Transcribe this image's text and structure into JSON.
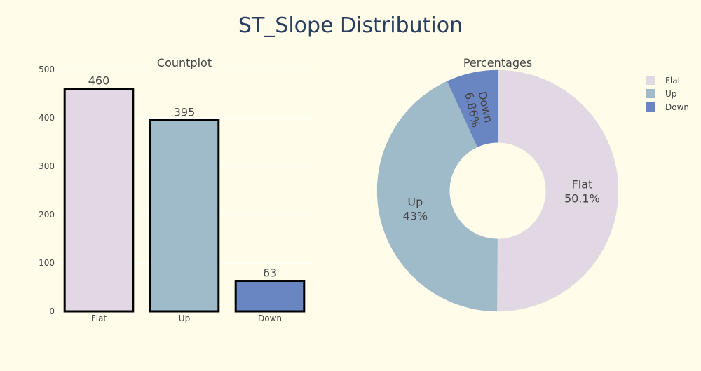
{
  "title": "ST_Slope Distribution",
  "colors": {
    "background": "#fffde9",
    "title": "#2a3f5f",
    "text": "#444444",
    "series": [
      "#e2d8e3",
      "#9fbac8",
      "#6a86c2"
    ]
  },
  "chart_data": [
    {
      "type": "bar",
      "title": "Countplot",
      "categories": [
        "Flat",
        "Up",
        "Down"
      ],
      "values": [
        460,
        395,
        63
      ],
      "ylim": [
        0,
        500
      ],
      "yticks": [
        0,
        100,
        200,
        300,
        400,
        500
      ],
      "grid": true
    },
    {
      "type": "pie",
      "title": "Percentages",
      "hole": 0.4,
      "labels": [
        "Flat",
        "Up",
        "Down"
      ],
      "values": [
        460,
        395,
        63
      ],
      "percent_labels": [
        "50.1%",
        "43%",
        "6.86%"
      ],
      "legend": {
        "placement": "top-right",
        "entries": [
          "Flat",
          "Up",
          "Down"
        ]
      }
    }
  ]
}
